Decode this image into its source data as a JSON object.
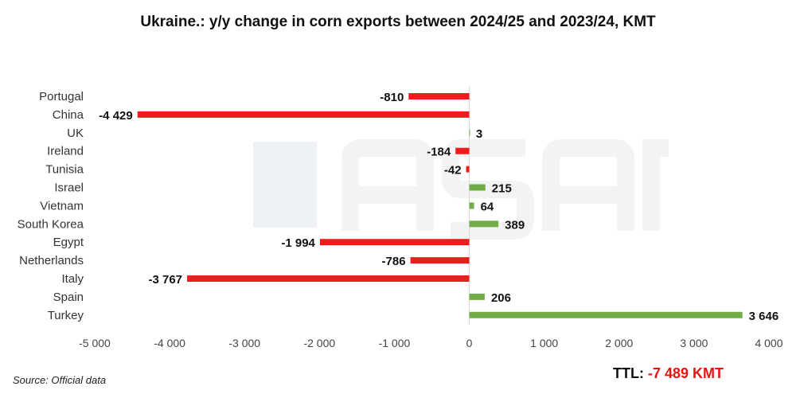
{
  "chart_data": {
    "type": "bar",
    "orientation": "horizontal",
    "title": "Ukraine.: y/y change in corn exports between 2024/25 and 2023/24, KMT",
    "categories": [
      "Portugal",
      "China",
      "UK",
      "Ireland",
      "Tunisia",
      "Israel",
      "Vietnam",
      "South Korea",
      "Egypt",
      "Netherlands",
      "Italy",
      "Spain",
      "Turkey"
    ],
    "values": [
      -810,
      -4429,
      3,
      -184,
      -42,
      215,
      64,
      389,
      -1994,
      -786,
      -3767,
      206,
      3646
    ],
    "data_labels": [
      "-810",
      "-4 429",
      "3",
      "-184",
      "-42",
      "215",
      "64",
      "389",
      "-1 994",
      "-786",
      "-3 767",
      "206",
      "3 646"
    ],
    "xlim": [
      -5000,
      4000
    ],
    "xticks": [
      -5000,
      -4000,
      -3000,
      -2000,
      -1000,
      0,
      1000,
      2000,
      3000,
      4000
    ],
    "xtick_labels": [
      "-5 000",
      "-4 000",
      "-3 000",
      "-2 000",
      "-1 000",
      "0",
      "1 000",
      "2 000",
      "3 000",
      "4 000"
    ],
    "grid": false,
    "legend": "none",
    "colors": {
      "negative": "#ee1c1c",
      "positive": "#70ad47"
    }
  },
  "source": "Source: Official data",
  "total": {
    "label": "TTL:",
    "value": "-7 489 KMT"
  },
  "watermark": "ASAP"
}
